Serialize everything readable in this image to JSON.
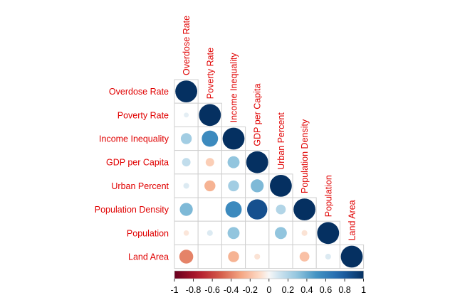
{
  "chart_data": {
    "type": "heatmap",
    "subtype": "correlation-matrix-lower-circles",
    "variables": [
      "Overdose Rate",
      "Poverty Rate",
      "Income Inequality",
      "GDP per Capita",
      "Urban Percent",
      "Population Density",
      "Population",
      "Land Area"
    ],
    "matrix": [
      [
        1.0
      ],
      [
        0.05,
        1.0
      ],
      [
        0.25,
        0.55,
        1.0
      ],
      [
        0.15,
        -0.15,
        0.3,
        1.0
      ],
      [
        0.07,
        -0.25,
        0.25,
        0.35,
        1.0
      ],
      [
        0.35,
        0.0,
        0.55,
        0.85,
        0.2,
        1.0
      ],
      [
        -0.06,
        0.07,
        0.3,
        0.0,
        0.3,
        -0.07,
        1.0
      ],
      [
        -0.4,
        0.0,
        -0.25,
        -0.07,
        0.0,
        -0.2,
        0.07,
        1.0
      ]
    ],
    "legend": {
      "position": "bottom",
      "ticks": [
        "-1",
        "-0.8",
        "-0.6",
        "-0.4",
        "-0.2",
        "0",
        "0.2",
        "0.4",
        "0.6",
        "0.8",
        "1"
      ],
      "range": [
        -1,
        1
      ]
    },
    "label_color": "#e00000",
    "grid": true
  }
}
